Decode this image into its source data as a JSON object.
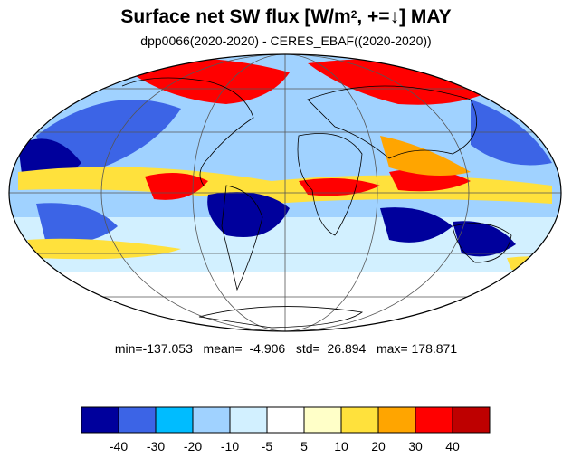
{
  "header": {
    "title_prefix": "Surface net SW flux [W/m",
    "title_sup": "2",
    "title_mid": ", +=",
    "title_arrow": "↓",
    "title_suffix": "]  MAY",
    "subtitle": "dpp0066(2020-2020) - CERES_EBAF((2020-2020))"
  },
  "stats": {
    "text": "min=-137.053   mean=  -4.906   std=  26.894   max= 178.871"
  },
  "legend": {
    "colors": [
      "#00009c",
      "#3c64e6",
      "#00bcff",
      "#a0d2ff",
      "#d2f0ff",
      "#ffffff",
      "#ffffc8",
      "#ffe13c",
      "#ffa500",
      "#ff0000",
      "#be0000"
    ],
    "tick_labels": [
      "-40",
      "-30",
      "-20",
      "-10",
      "-5",
      "5",
      "10",
      "20",
      "30",
      "40"
    ]
  },
  "map": {
    "projection": "mollweide",
    "land_color": "outline-only"
  }
}
